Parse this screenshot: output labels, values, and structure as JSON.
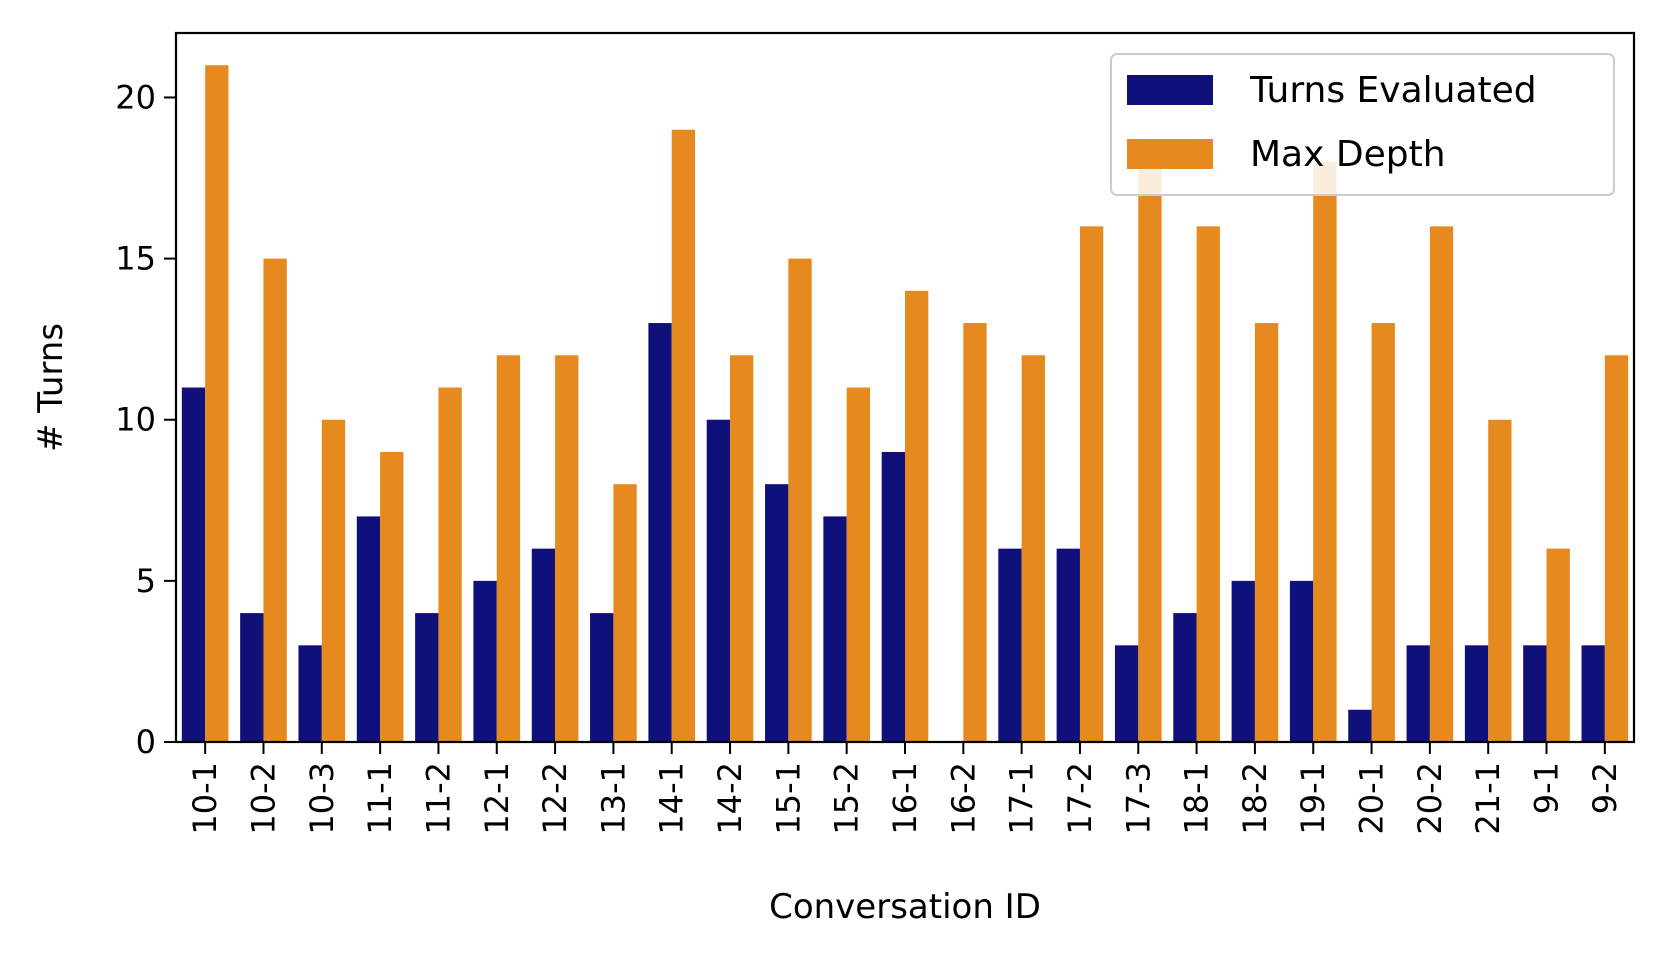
{
  "chart_data": {
    "type": "bar",
    "title": "",
    "xlabel": "Conversation ID",
    "ylabel": "# Turns",
    "ylim": [
      0,
      22
    ],
    "yticks": [
      0,
      5,
      10,
      15,
      20
    ],
    "grid": false,
    "legend_position": "top-right",
    "categories": [
      "10-1",
      "10-2",
      "10-3",
      "11-1",
      "11-2",
      "12-1",
      "12-2",
      "13-1",
      "14-1",
      "14-2",
      "15-1",
      "15-2",
      "16-1",
      "16-2",
      "17-1",
      "17-2",
      "17-3",
      "18-1",
      "18-2",
      "19-1",
      "20-1",
      "20-2",
      "21-1",
      "9-1",
      "9-2"
    ],
    "series": [
      {
        "name": "Turns Evaluated",
        "color": "#10107a",
        "values": [
          11,
          4,
          3,
          7,
          4,
          5,
          6,
          4,
          13,
          10,
          8,
          7,
          9,
          0,
          6,
          6,
          3,
          4,
          5,
          5,
          1,
          3,
          3,
          3,
          3
        ]
      },
      {
        "name": "Max Depth",
        "color": "#e68a1f",
        "values": [
          21,
          15,
          10,
          9,
          11,
          12,
          12,
          8,
          19,
          12,
          15,
          11,
          14,
          13,
          12,
          16,
          18,
          16,
          13,
          18,
          13,
          16,
          10,
          6,
          12
        ]
      }
    ]
  }
}
